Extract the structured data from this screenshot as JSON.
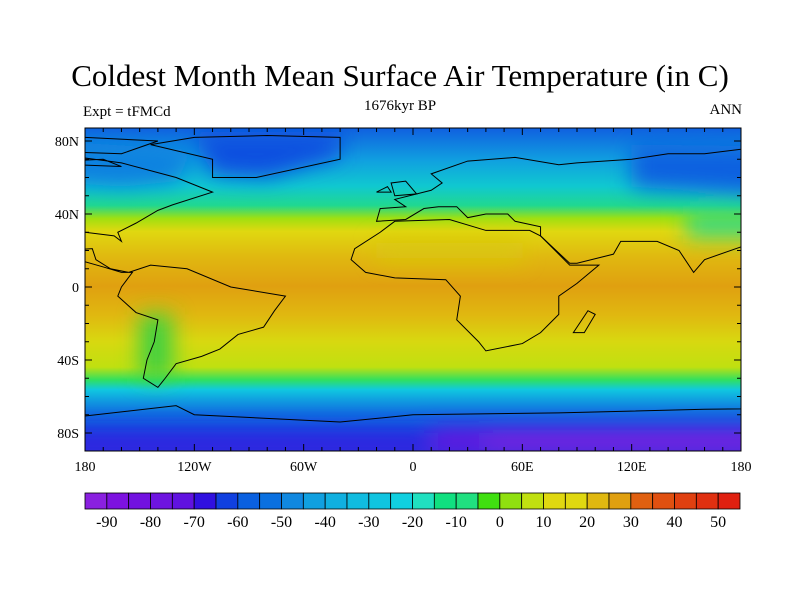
{
  "chart_data": {
    "type": "heatmap",
    "title": "Coldest Month Mean Surface Air Temperature (in C)",
    "left_subtitle": "Expt = tFMCd",
    "center_subtitle": "1676kyr BP",
    "right_subtitle": "ANN",
    "projection": "cylindrical-equidistant",
    "x_ticks": [
      "180",
      "120W",
      "60W",
      "0",
      "60E",
      "120E",
      "180"
    ],
    "x_tick_values": [
      -180,
      -120,
      -60,
      0,
      60,
      120,
      180
    ],
    "y_ticks": [
      "80N",
      "40N",
      "0",
      "40S",
      "80S"
    ],
    "y_tick_values": [
      80,
      40,
      0,
      -40,
      -80
    ],
    "xlim": [
      -180,
      180
    ],
    "ylim": [
      -90,
      87
    ],
    "colorbar": {
      "levels": [
        -90,
        -85,
        -80,
        -75,
        -70,
        -65,
        -60,
        -55,
        -50,
        -45,
        -40,
        -35,
        -30,
        -25,
        -20,
        -15,
        -10,
        -5,
        0,
        5,
        10,
        15,
        20,
        25,
        30,
        35,
        40,
        45,
        50
      ],
      "labels": [
        "-90",
        "-80",
        "-70",
        "-60",
        "-50",
        "-40",
        "-30",
        "-20",
        "-10",
        "0",
        "10",
        "20",
        "30",
        "40",
        "50"
      ],
      "colors": [
        "#8a20e0",
        "#7d12e0",
        "#7212e0",
        "#6e14e0",
        "#6012e0",
        "#3010e0",
        "#1040e0",
        "#0a60e0",
        "#0a70e0",
        "#1088e0",
        "#10a0e0",
        "#10b0e0",
        "#10bce0",
        "#10c4e0",
        "#10d0e0",
        "#20e0c0",
        "#10e080",
        "#20e080",
        "#40e010",
        "#90e010",
        "#c0e010",
        "#e0d810",
        "#e0d810",
        "#e0b810",
        "#e0a010",
        "#e06010",
        "#e05010",
        "#e04010",
        "#e03010",
        "#e02010"
      ]
    },
    "field_summary": {
      "tropics_c": 27,
      "midlatitude_c": 15,
      "north_polar_c": -45,
      "antarctic_interior_c": -75
    }
  }
}
